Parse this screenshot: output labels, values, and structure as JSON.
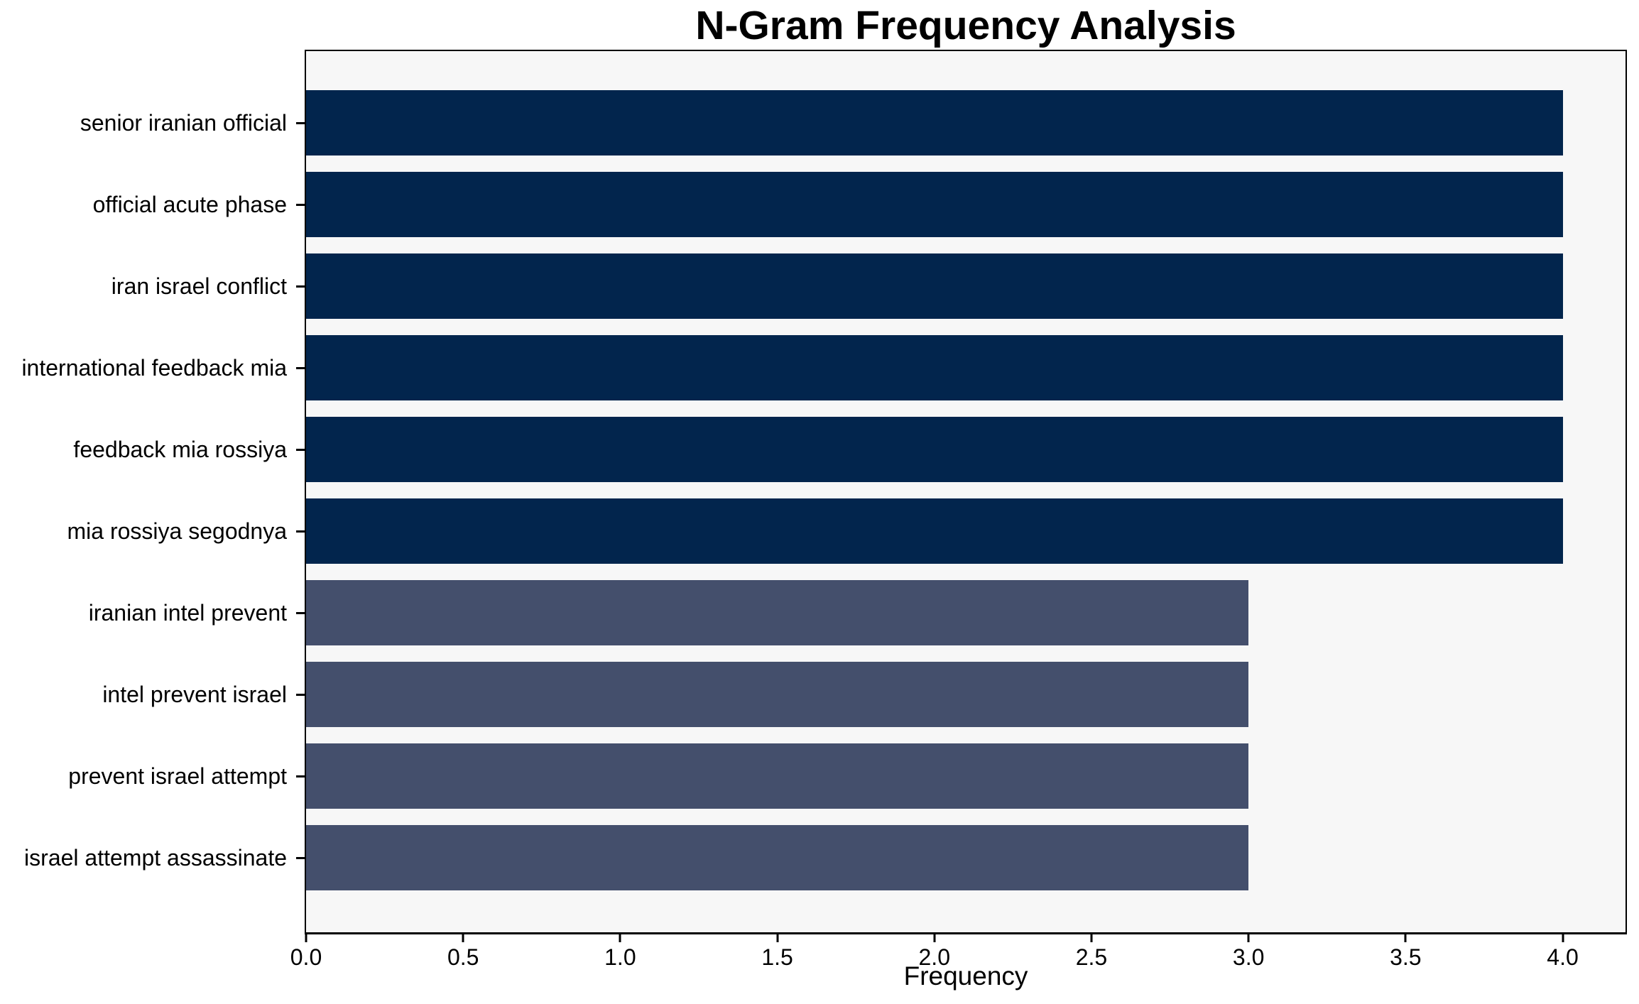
{
  "figure": {
    "background": "#ffffff",
    "plot_background": "#f7f7f7",
    "spine_color": "#000000"
  },
  "chart_data": {
    "type": "bar",
    "orientation": "horizontal",
    "title": "N-Gram Frequency Analysis",
    "xlabel": "Frequency",
    "ylabel": "",
    "categories": [
      "senior iranian official",
      "official acute phase",
      "iran israel conflict",
      "international feedback mia",
      "feedback mia rossiya",
      "mia rossiya segodnya",
      "iranian intel prevent",
      "intel prevent israel",
      "prevent israel attempt",
      "israel attempt assassinate"
    ],
    "values": [
      4,
      4,
      4,
      4,
      4,
      4,
      3,
      3,
      3,
      3
    ],
    "bar_colors": [
      "#02254d",
      "#02254d",
      "#02254d",
      "#02254d",
      "#02254d",
      "#02254d",
      "#444f6c",
      "#444f6c",
      "#444f6c",
      "#444f6c"
    ],
    "xlim": [
      0,
      4.2
    ],
    "xticks": [
      "0.0",
      "0.5",
      "1.0",
      "1.5",
      "2.0",
      "2.5",
      "3.0",
      "3.5",
      "4.0"
    ],
    "grid": false,
    "legend": null
  }
}
